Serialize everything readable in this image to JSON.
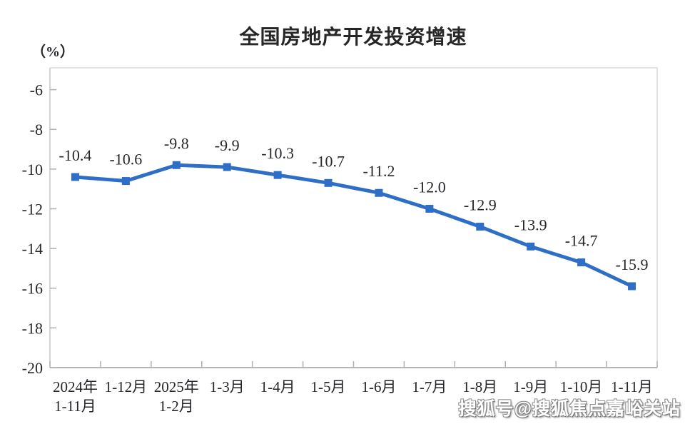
{
  "title": "全国房地产开发投资增速",
  "y_axis_unit": "（%）",
  "watermark": "搜狐号@搜狐焦点嘉峪关站",
  "chart_data": {
    "type": "line",
    "title": "全国房地产开发投资增速",
    "categories": [
      "2024年\n1-11月",
      "1-12月",
      "2025年\n1-2月",
      "1-3月",
      "1-4月",
      "1-5月",
      "1-6月",
      "1-7月",
      "1-8月",
      "1-9月",
      "1-10月",
      "1-11月"
    ],
    "series": [
      {
        "name": "全国房地产开发投资增速",
        "values": [
          -10.4,
          -10.6,
          -9.8,
          -9.9,
          -10.3,
          -10.7,
          -11.2,
          -12.0,
          -12.9,
          -13.9,
          -14.7,
          -15.9
        ]
      }
    ],
    "data_labels": [
      "-10.4",
      "-10.6",
      "-9.8",
      "-9.9",
      "-10.3",
      "-10.7",
      "-11.2",
      "-12.0",
      "-12.9",
      "-13.9",
      "-14.7",
      "-15.9"
    ],
    "xlabel": "",
    "ylabel": "（%）",
    "y_ticks": [
      -6,
      -8,
      -10,
      -12,
      -14,
      -16,
      -18,
      -20
    ],
    "ylim": [
      -20,
      -4.9
    ],
    "grid": false,
    "legend": "none",
    "marker": "square",
    "line_color": "#2f6ec7",
    "text_color": "#26262b",
    "border_color": "#d9d9d9",
    "left_axis_color": "#c9c9c9",
    "bottom_axis_color": "#9e9e9e",
    "tick_color": "#b0b0b0"
  }
}
